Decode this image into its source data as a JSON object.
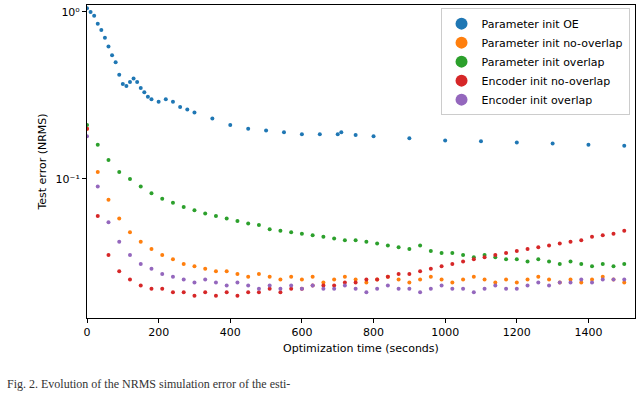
{
  "chart_data": {
    "type": "scatter",
    "x_label": "Optimization time (seconds)",
    "y_label": "Test error (NRMS)",
    "annotations": [
      "Fig. 2. Evolution of the NRMS simulation error of the esti-"
    ],
    "log": "y",
    "grid": false,
    "legend": "upper right",
    "marker": "circle",
    "xlim": [
      0,
      1530
    ],
    "xticks": [
      0,
      200,
      400,
      600,
      800,
      1000,
      1200,
      1400
    ],
    "ylim": [
      0.0147,
      1.1
    ],
    "yticks": [
      {
        "value": 0.1,
        "label": "10⁻¹"
      },
      {
        "value": 1,
        "label": "10⁰"
      }
    ],
    "series": [
      {
        "name": "Parameter init OE",
        "color": "#1f77b4",
        "x": [
          0,
          10,
          20,
          30,
          40,
          50,
          60,
          70,
          80,
          90,
          100,
          110,
          120,
          130,
          140,
          150,
          160,
          170,
          180,
          200,
          220,
          240,
          260,
          280,
          300,
          350,
          400,
          450,
          500,
          550,
          600,
          650,
          700,
          710,
          750,
          800,
          900,
          1000,
          1100,
          1200,
          1300,
          1400,
          1500
        ],
        "values": [
          1.05,
          1.0,
          0.95,
          0.85,
          0.78,
          0.7,
          0.62,
          0.55,
          0.5,
          0.42,
          0.37,
          0.36,
          0.38,
          0.4,
          0.38,
          0.35,
          0.33,
          0.31,
          0.3,
          0.29,
          0.3,
          0.29,
          0.27,
          0.26,
          0.25,
          0.23,
          0.21,
          0.2,
          0.195,
          0.19,
          0.185,
          0.185,
          0.185,
          0.19,
          0.183,
          0.18,
          0.175,
          0.17,
          0.168,
          0.165,
          0.163,
          0.16,
          0.158
        ]
      },
      {
        "name": "Parameter init no-overlap",
        "color": "#ff7f0e",
        "x": [
          0,
          30,
          60,
          90,
          120,
          150,
          180,
          210,
          240,
          270,
          300,
          330,
          360,
          390,
          420,
          450,
          480,
          510,
          540,
          570,
          600,
          630,
          660,
          690,
          720,
          750,
          780,
          810,
          840,
          870,
          900,
          930,
          960,
          990,
          1020,
          1050,
          1080,
          1110,
          1140,
          1170,
          1200,
          1230,
          1260,
          1290,
          1320,
          1350,
          1380,
          1410,
          1440,
          1470,
          1500
        ],
        "values": [
          0.2,
          0.11,
          0.075,
          0.058,
          0.048,
          0.042,
          0.038,
          0.035,
          0.033,
          0.031,
          0.03,
          0.029,
          0.028,
          0.028,
          0.027,
          0.026,
          0.027,
          0.026,
          0.025,
          0.026,
          0.025,
          0.026,
          0.024,
          0.025,
          0.026,
          0.025,
          0.024,
          0.025,
          0.026,
          0.025,
          0.024,
          0.025,
          0.026,
          0.025,
          0.024,
          0.025,
          0.026,
          0.025,
          0.024,
          0.025,
          0.024,
          0.025,
          0.026,
          0.025,
          0.024,
          0.025,
          0.024,
          0.025,
          0.026,
          0.025,
          0.024
        ]
      },
      {
        "name": "Parameter init overlap",
        "color": "#2ca02c",
        "x": [
          0,
          30,
          60,
          90,
          120,
          150,
          180,
          210,
          240,
          270,
          300,
          330,
          360,
          390,
          420,
          450,
          480,
          510,
          540,
          570,
          600,
          630,
          660,
          690,
          720,
          750,
          780,
          810,
          840,
          870,
          900,
          930,
          960,
          990,
          1020,
          1050,
          1080,
          1110,
          1140,
          1170,
          1200,
          1230,
          1260,
          1290,
          1320,
          1350,
          1380,
          1410,
          1440,
          1470,
          1500
        ],
        "values": [
          0.21,
          0.16,
          0.13,
          0.11,
          0.1,
          0.09,
          0.082,
          0.076,
          0.072,
          0.068,
          0.065,
          0.062,
          0.06,
          0.058,
          0.056,
          0.054,
          0.053,
          0.05,
          0.049,
          0.048,
          0.047,
          0.046,
          0.045,
          0.044,
          0.043,
          0.043,
          0.042,
          0.041,
          0.04,
          0.039,
          0.038,
          0.04,
          0.037,
          0.036,
          0.036,
          0.035,
          0.034,
          0.035,
          0.034,
          0.033,
          0.033,
          0.032,
          0.033,
          0.032,
          0.031,
          0.032,
          0.031,
          0.03,
          0.031,
          0.03,
          0.031
        ]
      },
      {
        "name": "Encoder init no-overlap",
        "color": "#d62728",
        "x": [
          0,
          30,
          60,
          90,
          120,
          150,
          180,
          210,
          240,
          270,
          300,
          330,
          360,
          390,
          420,
          450,
          480,
          510,
          540,
          570,
          600,
          630,
          660,
          690,
          720,
          750,
          780,
          810,
          840,
          870,
          900,
          930,
          960,
          990,
          1020,
          1050,
          1080,
          1110,
          1140,
          1170,
          1200,
          1230,
          1260,
          1290,
          1320,
          1350,
          1380,
          1410,
          1440,
          1470,
          1500
        ],
        "values": [
          0.2,
          0.06,
          0.035,
          0.028,
          0.025,
          0.023,
          0.022,
          0.022,
          0.021,
          0.021,
          0.02,
          0.021,
          0.02,
          0.021,
          0.02,
          0.021,
          0.021,
          0.022,
          0.021,
          0.022,
          0.022,
          0.023,
          0.023,
          0.023,
          0.024,
          0.024,
          0.025,
          0.025,
          0.026,
          0.027,
          0.027,
          0.028,
          0.029,
          0.03,
          0.031,
          0.032,
          0.033,
          0.034,
          0.035,
          0.036,
          0.037,
          0.038,
          0.039,
          0.04,
          0.041,
          0.042,
          0.043,
          0.045,
          0.046,
          0.047,
          0.049
        ]
      },
      {
        "name": "Encoder init overlap",
        "color": "#9467bd",
        "x": [
          0,
          30,
          60,
          90,
          120,
          150,
          180,
          210,
          240,
          270,
          300,
          330,
          360,
          390,
          420,
          450,
          480,
          510,
          540,
          570,
          600,
          630,
          660,
          690,
          720,
          750,
          780,
          810,
          840,
          870,
          900,
          930,
          960,
          990,
          1020,
          1050,
          1080,
          1110,
          1140,
          1170,
          1200,
          1230,
          1260,
          1290,
          1320,
          1350,
          1380,
          1410,
          1440,
          1470,
          1500
        ],
        "values": [
          0.18,
          0.09,
          0.055,
          0.042,
          0.035,
          0.031,
          0.029,
          0.027,
          0.026,
          0.025,
          0.024,
          0.025,
          0.024,
          0.023,
          0.024,
          0.023,
          0.022,
          0.023,
          0.022,
          0.023,
          0.022,
          0.023,
          0.022,
          0.022,
          0.023,
          0.022,
          0.021,
          0.022,
          0.023,
          0.022,
          0.022,
          0.021,
          0.022,
          0.023,
          0.022,
          0.022,
          0.021,
          0.022,
          0.023,
          0.022,
          0.022,
          0.023,
          0.024,
          0.023,
          0.024,
          0.024,
          0.025,
          0.024,
          0.025,
          0.025,
          0.025
        ]
      }
    ]
  }
}
